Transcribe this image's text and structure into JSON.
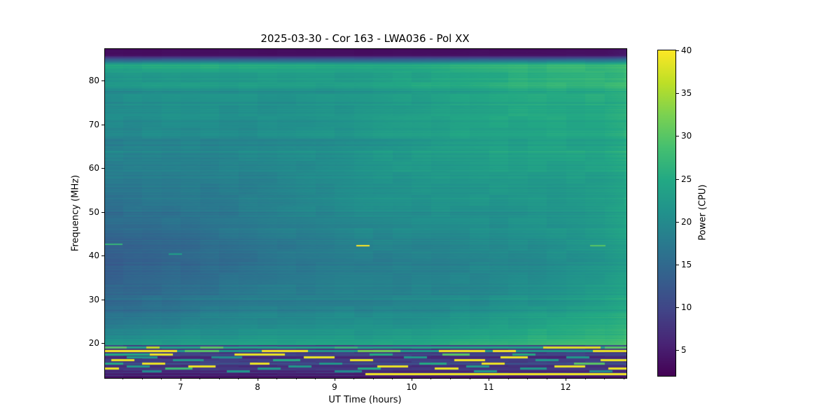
{
  "figure": {
    "background_color": "#ffffff",
    "text_color": "#000000"
  },
  "chart_data": {
    "type": "heatmap",
    "title": "2025-03-30 - Cor 163 - LWA036 - Pol XX",
    "xlabel": "UT Time (hours)",
    "ylabel": "Frequency (MHz)",
    "colorbar_label": "Power (CPU)",
    "x_range": [
      6.02,
      12.79
    ],
    "y_range": [
      12.0,
      87.2
    ],
    "x_ticks": [
      7,
      8,
      9,
      10,
      11,
      12
    ],
    "x_tick_labels": [
      "7",
      "8",
      "9",
      "10",
      "11",
      "12"
    ],
    "x_minor_tick_step": 0.25,
    "y_ticks": [
      20,
      30,
      40,
      50,
      60,
      70,
      80
    ],
    "y_tick_labels": [
      "20",
      "30",
      "40",
      "50",
      "60",
      "70",
      "80"
    ],
    "colorbar_ticks": [
      5,
      10,
      15,
      20,
      25,
      30,
      35,
      40
    ],
    "colorbar_tick_labels": [
      "5",
      "10",
      "15",
      "20",
      "25",
      "30",
      "35",
      "40"
    ],
    "clim": [
      2,
      40
    ],
    "grid": false,
    "legend": "none",
    "colormap": {
      "name": "viridis",
      "stops": [
        {
          "pos": 0.0,
          "color": "#440154"
        },
        {
          "pos": 0.1,
          "color": "#482475"
        },
        {
          "pos": 0.2,
          "color": "#414487"
        },
        {
          "pos": 0.3,
          "color": "#355f8d"
        },
        {
          "pos": 0.4,
          "color": "#2a788e"
        },
        {
          "pos": 0.5,
          "color": "#21918c"
        },
        {
          "pos": 0.6,
          "color": "#22a884"
        },
        {
          "pos": 0.7,
          "color": "#44bf70"
        },
        {
          "pos": 0.8,
          "color": "#7ad151"
        },
        {
          "pos": 0.9,
          "color": "#bddf26"
        },
        {
          "pos": 1.0,
          "color": "#fde725"
        }
      ]
    },
    "background_profile": {
      "description": "Power (CPU) vs frequency, linearly interpolated; vl = value at 6.02h (left edge), vr = value at 12.79h (right edge). Power rises through the morning.",
      "anchors": [
        [
          87.2,
          3.0,
          3.2
        ],
        [
          85.8,
          3.5,
          4.0
        ],
        [
          84.8,
          14.0,
          16.0
        ],
        [
          83.5,
          25.0,
          27.5
        ],
        [
          82.0,
          22.0,
          26.0
        ],
        [
          80.5,
          21.0,
          26.5
        ],
        [
          78.8,
          22.0,
          27.0
        ],
        [
          77.5,
          20.0,
          25.5
        ],
        [
          72.0,
          19.5,
          25.0
        ],
        [
          65.0,
          18.5,
          25.0
        ],
        [
          58.0,
          17.5,
          24.0
        ],
        [
          52.0,
          16.5,
          23.5
        ],
        [
          47.0,
          15.5,
          23.0
        ],
        [
          43.0,
          14.2,
          22.5
        ],
        [
          38.0,
          13.8,
          22.0
        ],
        [
          33.0,
          14.5,
          22.5
        ],
        [
          28.0,
          15.5,
          23.0
        ],
        [
          25.0,
          17.0,
          24.5
        ],
        [
          22.5,
          19.0,
          26.0
        ],
        [
          20.5,
          21.0,
          27.5
        ],
        [
          19.6,
          22.0,
          28.0
        ]
      ]
    },
    "features": [
      {
        "name": "teal-dash",
        "f": 42.5,
        "t0": 6.02,
        "t1": 6.25,
        "v": 27
      },
      {
        "name": "faint-teal-dash",
        "f": 40.3,
        "t0": 6.85,
        "t1": 7.02,
        "v": 23
      },
      {
        "name": "yellow-burst-dash",
        "f": 42.3,
        "t0": 9.28,
        "t1": 9.45,
        "v": 40
      },
      {
        "name": "green-dash",
        "f": 42.3,
        "t0": 12.32,
        "t1": 12.52,
        "v": 30
      }
    ],
    "rfi_region_max_freq": 19.6,
    "rfi_rows": [
      {
        "f": 19.0,
        "base": 24,
        "segments": [
          [
            6.02,
            6.3,
            30
          ],
          [
            6.55,
            6.72,
            36
          ],
          [
            7.25,
            7.55,
            30
          ],
          [
            9.0,
            9.3,
            27
          ],
          [
            11.7,
            12.45,
            38
          ],
          [
            12.5,
            12.79,
            30
          ]
        ]
      },
      {
        "f": 18.2,
        "base": 22,
        "segments": [
          [
            6.02,
            6.95,
            39.5
          ],
          [
            7.05,
            7.5,
            30
          ],
          [
            8.05,
            8.65,
            39.5
          ],
          [
            9.3,
            9.85,
            32
          ],
          [
            10.35,
            10.95,
            39.5
          ],
          [
            11.05,
            11.35,
            39.5
          ],
          [
            12.35,
            12.79,
            39
          ]
        ]
      },
      {
        "f": 17.5,
        "base": 10,
        "segments": [
          [
            6.02,
            6.6,
            25
          ],
          [
            6.6,
            6.9,
            39
          ],
          [
            7.7,
            8.35,
            39
          ],
          [
            9.45,
            9.75,
            25
          ],
          [
            10.4,
            10.75,
            30
          ],
          [
            11.3,
            11.6,
            25
          ]
        ]
      },
      {
        "f": 16.8,
        "base": 6,
        "segments": [
          [
            6.3,
            6.7,
            22
          ],
          [
            7.4,
            7.8,
            20
          ],
          [
            8.6,
            9.0,
            39
          ],
          [
            9.9,
            10.2,
            22
          ],
          [
            11.15,
            11.5,
            39
          ],
          [
            12.0,
            12.3,
            22
          ]
        ]
      },
      {
        "f": 16.1,
        "base": 9,
        "segments": [
          [
            6.1,
            6.4,
            39
          ],
          [
            6.9,
            7.3,
            22
          ],
          [
            8.2,
            8.55,
            25
          ],
          [
            9.2,
            9.5,
            39
          ],
          [
            10.55,
            10.95,
            39.5
          ],
          [
            11.6,
            11.9,
            22
          ],
          [
            12.45,
            12.79,
            39
          ]
        ]
      },
      {
        "f": 15.4,
        "base": 11,
        "segments": [
          [
            6.02,
            6.25,
            25
          ],
          [
            6.5,
            6.8,
            39
          ],
          [
            7.9,
            8.15,
            39
          ],
          [
            8.8,
            9.1,
            22
          ],
          [
            10.1,
            10.45,
            25
          ],
          [
            10.9,
            11.2,
            39
          ],
          [
            12.1,
            12.5,
            30
          ]
        ]
      },
      {
        "f": 14.8,
        "base": 7,
        "segments": [
          [
            6.3,
            6.6,
            22
          ],
          [
            7.1,
            7.45,
            39
          ],
          [
            8.4,
            8.7,
            22
          ],
          [
            9.55,
            9.95,
            39
          ],
          [
            10.7,
            11.0,
            22
          ],
          [
            11.85,
            12.25,
            39
          ]
        ]
      },
      {
        "f": 14.2,
        "base": 8,
        "segments": [
          [
            6.02,
            6.2,
            39
          ],
          [
            6.8,
            7.15,
            28
          ],
          [
            8.0,
            8.3,
            22
          ],
          [
            9.3,
            9.6,
            25
          ],
          [
            10.3,
            10.6,
            39
          ],
          [
            11.4,
            11.75,
            22
          ],
          [
            12.55,
            12.79,
            39
          ]
        ]
      },
      {
        "f": 13.6,
        "base": 6,
        "segments": [
          [
            6.5,
            6.75,
            20
          ],
          [
            7.6,
            7.9,
            22
          ],
          [
            9.0,
            9.35,
            20
          ],
          [
            10.8,
            11.1,
            22
          ],
          [
            12.3,
            12.6,
            20
          ]
        ]
      },
      {
        "f": 13.0,
        "base": 5,
        "segments": [
          [
            9.4,
            12.79,
            39.5
          ]
        ]
      },
      {
        "f": 12.4,
        "base": 4,
        "segments": []
      }
    ],
    "noise": {
      "row_noise": 0.9,
      "block_hours": 0.25,
      "block_noise": 0.5,
      "wave_amp": 0.5,
      "right_edge_boost_start": 12.5
    }
  }
}
